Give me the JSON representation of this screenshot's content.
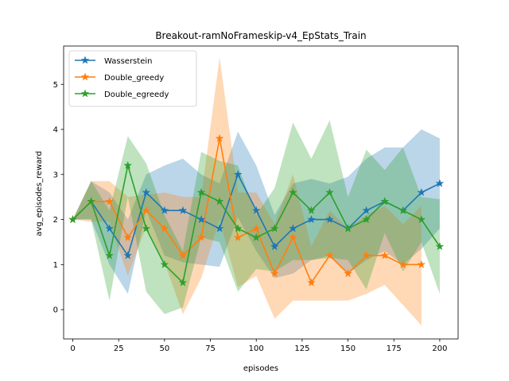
{
  "chart_data": {
    "type": "line",
    "title": "Breakout-ramNoFrameskip-v4_EpStats_Train",
    "xlabel": "episodes",
    "ylabel": "avg_episodes_reward",
    "xlim": [
      -5,
      210
    ],
    "ylim": [
      -0.65,
      5.85
    ],
    "xticks": [
      0,
      25,
      50,
      75,
      100,
      125,
      150,
      175,
      200
    ],
    "yticks": [
      0,
      1,
      2,
      3,
      4,
      5
    ],
    "legend_position": "upper-left",
    "grid": false,
    "series": [
      {
        "name": "Wasserstein",
        "color": "#1f77b4",
        "marker": "star",
        "x": [
          0,
          10,
          20,
          30,
          40,
          50,
          60,
          70,
          80,
          90,
          100,
          110,
          120,
          130,
          140,
          150,
          160,
          170,
          180,
          190,
          200
        ],
        "y": [
          2.0,
          2.4,
          1.8,
          1.2,
          2.6,
          2.2,
          2.2,
          2.0,
          1.8,
          3.0,
          2.2,
          1.4,
          1.8,
          2.0,
          2.0,
          1.8,
          2.2,
          2.4,
          2.2,
          2.6,
          2.8
        ],
        "upper": [
          2.0,
          2.85,
          2.6,
          2.0,
          3.0,
          3.2,
          3.35,
          3.0,
          2.8,
          3.95,
          3.2,
          2.1,
          2.8,
          2.9,
          2.8,
          2.95,
          3.35,
          3.6,
          3.6,
          4.0,
          3.8
        ],
        "lower": [
          2.0,
          2.0,
          1.0,
          0.35,
          2.2,
          1.2,
          1.05,
          1.0,
          0.95,
          2.05,
          1.3,
          0.7,
          0.8,
          1.1,
          1.2,
          0.8,
          1.1,
          1.3,
          1.0,
          1.35,
          1.8
        ]
      },
      {
        "name": "Double_greedy",
        "color": "#ff7f0e",
        "marker": "star",
        "x": [
          0,
          10,
          20,
          30,
          40,
          50,
          60,
          70,
          80,
          90,
          100,
          110,
          120,
          130,
          140,
          150,
          160,
          170,
          180,
          190
        ],
        "y": [
          2.0,
          2.4,
          2.4,
          1.6,
          2.2,
          1.8,
          1.2,
          1.6,
          3.8,
          1.6,
          1.8,
          0.8,
          1.6,
          0.6,
          1.2,
          0.8,
          1.2,
          1.2,
          1.0,
          1.0
        ],
        "upper": [
          2.0,
          2.85,
          2.85,
          2.5,
          2.55,
          2.6,
          2.5,
          2.5,
          5.6,
          2.6,
          2.6,
          1.9,
          3.0,
          1.4,
          2.2,
          1.8,
          2.1,
          2.3,
          1.9,
          2.3
        ],
        "lower": [
          2.0,
          1.95,
          1.95,
          0.75,
          1.85,
          1.05,
          -0.1,
          0.7,
          2.0,
          0.5,
          0.75,
          -0.2,
          0.2,
          0.2,
          0.2,
          0.2,
          0.35,
          0.55,
          0.1,
          -0.35
        ]
      },
      {
        "name": "Double_egreedy",
        "color": "#2ca02c",
        "marker": "star",
        "x": [
          0,
          10,
          20,
          30,
          40,
          50,
          60,
          70,
          80,
          90,
          100,
          110,
          120,
          130,
          140,
          150,
          160,
          170,
          180,
          190,
          200
        ],
        "y": [
          2.0,
          2.4,
          1.2,
          3.2,
          1.8,
          1.0,
          0.6,
          2.6,
          2.4,
          1.8,
          1.6,
          1.8,
          2.6,
          2.2,
          2.6,
          1.8,
          2.0,
          2.4,
          2.2,
          2.0,
          1.4
        ],
        "upper": [
          2.0,
          2.85,
          2.2,
          3.85,
          3.25,
          2.1,
          1.3,
          3.5,
          3.3,
          3.2,
          2.1,
          2.7,
          4.15,
          3.35,
          4.2,
          2.5,
          3.55,
          3.1,
          3.6,
          2.5,
          2.45
        ],
        "lower": [
          2.0,
          2.0,
          0.2,
          2.5,
          0.4,
          -0.1,
          0.05,
          1.6,
          1.5,
          0.4,
          0.9,
          0.85,
          1.1,
          1.1,
          1.15,
          1.1,
          0.45,
          1.7,
          0.85,
          1.5,
          0.35
        ]
      }
    ]
  }
}
